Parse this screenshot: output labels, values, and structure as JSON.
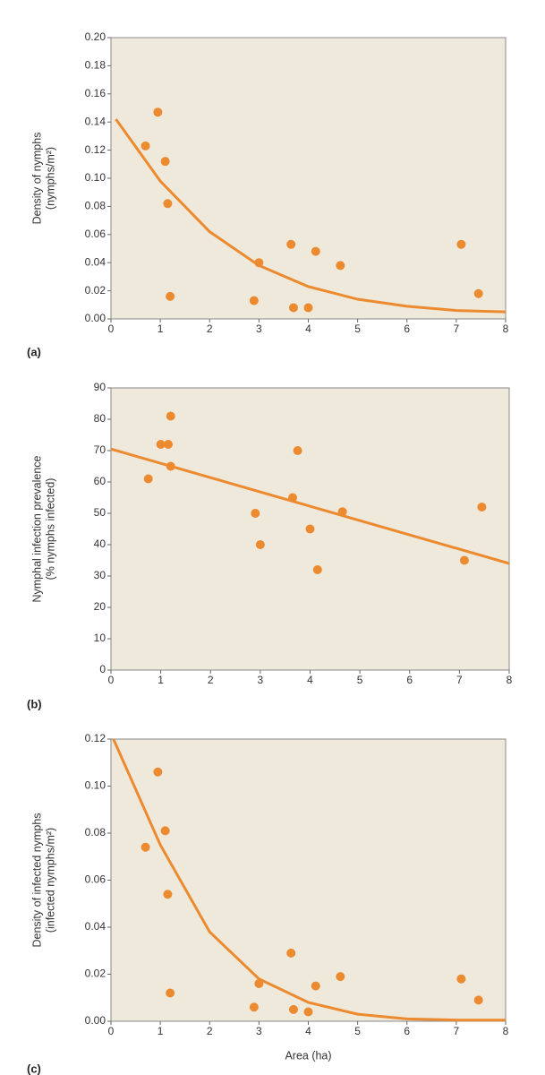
{
  "chart_data": [
    {
      "type": "scatter",
      "panel_label": "(a)",
      "ylabel": [
        "Density of nymphs",
        "(nymphs/m²)"
      ],
      "xlim": [
        0,
        8
      ],
      "xticks": [
        0,
        1,
        2,
        3,
        4,
        5,
        6,
        7,
        8
      ],
      "ylim": [
        0,
        0.2
      ],
      "yticks": [
        {
          "value": 0,
          "label": "0.00"
        },
        {
          "value": 0.02,
          "label": "0.02"
        },
        {
          "value": 0.04,
          "label": "0.04"
        },
        {
          "value": 0.06,
          "label": "0.06"
        },
        {
          "value": 0.08,
          "label": "0.08"
        },
        {
          "value": 0.1,
          "label": "0.10"
        },
        {
          "value": 0.12,
          "label": "0.12"
        },
        {
          "value": 0.14,
          "label": "0.14"
        },
        {
          "value": 0.16,
          "label": "0.16"
        },
        {
          "value": 0.18,
          "label": "0.18"
        },
        {
          "value": 0.2,
          "label": "0.20"
        }
      ],
      "series": [
        {
          "type": "scatter",
          "color": "#ec8a2f",
          "x": [
            0.7,
            0.95,
            1.1,
            1.15,
            1.2,
            2.9,
            3.0,
            3.65,
            3.7,
            4.0,
            4.15,
            4.65,
            7.1,
            7.45
          ],
          "values": [
            0.123,
            0.147,
            0.112,
            0.082,
            0.016,
            0.013,
            0.04,
            0.053,
            0.008,
            0.008,
            0.048,
            0.038,
            0.053,
            0.018
          ]
        },
        {
          "type": "line",
          "color": "#ec8a2f",
          "x": [
            0.1,
            1,
            2,
            3,
            4,
            5,
            6,
            7,
            8
          ],
          "values": [
            0.142,
            0.098,
            0.062,
            0.038,
            0.023,
            0.014,
            0.009,
            0.006,
            0.005
          ]
        }
      ]
    },
    {
      "type": "scatter",
      "panel_label": "(b)",
      "ylabel": [
        "Nymphal infection prevalence",
        "(% nymphs infected)"
      ],
      "xlim": [
        0,
        8
      ],
      "xticks": [
        0,
        1,
        2,
        3,
        4,
        5,
        6,
        7,
        8
      ],
      "ylim": [
        0,
        90
      ],
      "yticks": [
        0,
        10,
        20,
        30,
        40,
        50,
        60,
        70,
        80,
        90
      ],
      "series": [
        {
          "type": "scatter",
          "color": "#ec8a2f",
          "x": [
            0.75,
            1.0,
            1.15,
            1.2,
            1.2,
            2.9,
            3.0,
            3.65,
            3.75,
            4.0,
            4.15,
            4.65,
            7.1,
            7.45
          ],
          "values": [
            61,
            72,
            72,
            65,
            81,
            50,
            40,
            55,
            70,
            45,
            32,
            50.5,
            35,
            52
          ]
        },
        {
          "type": "line",
          "color": "#ec8a2f",
          "x": [
            0,
            8
          ],
          "values": [
            70.5,
            34
          ]
        }
      ]
    },
    {
      "type": "scatter",
      "panel_label": "(c)",
      "ylabel": [
        "Density of infected nymphs",
        "(infected nymphs/m²)"
      ],
      "xlabel": "Area (ha)",
      "xlim": [
        0,
        8
      ],
      "xticks": [
        0,
        1,
        2,
        3,
        4,
        5,
        6,
        7,
        8
      ],
      "ylim": [
        0,
        0.12
      ],
      "yticks": [
        {
          "value": 0,
          "label": "0.00"
        },
        {
          "value": 0.02,
          "label": "0.02"
        },
        {
          "value": 0.04,
          "label": "0.04"
        },
        {
          "value": 0.06,
          "label": "0.06"
        },
        {
          "value": 0.08,
          "label": "0.08"
        },
        {
          "value": 0.1,
          "label": "0.10"
        },
        {
          "value": 0.12,
          "label": "0.12"
        }
      ],
      "series": [
        {
          "type": "scatter",
          "color": "#ec8a2f",
          "x": [
            0.7,
            0.95,
            1.1,
            1.15,
            1.2,
            2.9,
            3.0,
            3.65,
            3.7,
            4.0,
            4.15,
            4.65,
            7.1,
            7.45
          ],
          "values": [
            0.074,
            0.106,
            0.081,
            0.054,
            0.012,
            0.006,
            0.016,
            0.029,
            0.005,
            0.004,
            0.015,
            0.019,
            0.018,
            0.009
          ]
        },
        {
          "type": "line",
          "color": "#ec8a2f",
          "x": [
            0.05,
            1,
            2,
            3,
            4,
            5,
            6,
            7,
            8
          ],
          "values": [
            0.12,
            0.075,
            0.038,
            0.018,
            0.008,
            0.003,
            0.001,
            0.0005,
            0.0005
          ]
        }
      ]
    }
  ]
}
